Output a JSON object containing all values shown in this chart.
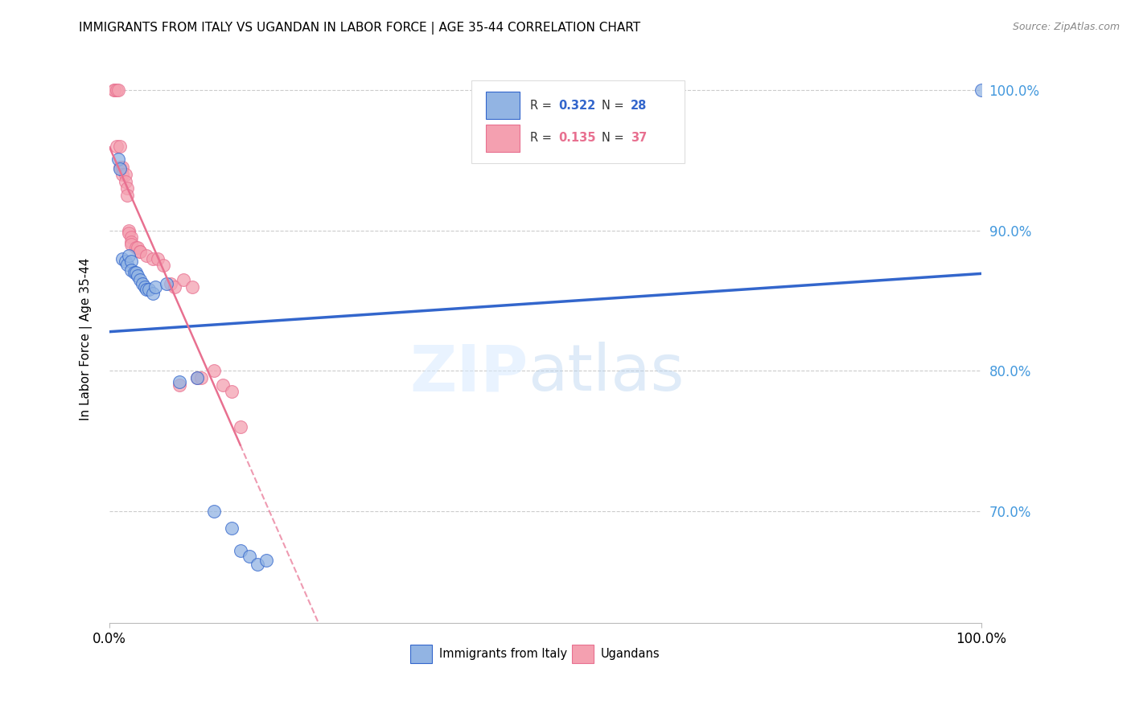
{
  "title": "IMMIGRANTS FROM ITALY VS UGANDAN IN LABOR FORCE | AGE 35-44 CORRELATION CHART",
  "source": "Source: ZipAtlas.com",
  "ylabel": "In Labor Force | Age 35-44",
  "legend_italy_R": "0.322",
  "legend_italy_N": "28",
  "legend_ugandan_R": "0.135",
  "legend_ugandan_N": "37",
  "italy_color": "#92B4E3",
  "ugandan_color": "#F4A0B0",
  "italy_line_color": "#3366CC",
  "ugandan_line_color": "#E87090",
  "watermark_zip": "ZIP",
  "watermark_atlas": "atlas",
  "italy_x": [
    1.0,
    1.2,
    1.5,
    1.8,
    2.0,
    2.2,
    2.5,
    2.5,
    2.8,
    3.0,
    3.2,
    3.5,
    3.8,
    4.0,
    4.2,
    4.5,
    5.0,
    5.2,
    6.5,
    8.0,
    10.0,
    12.0,
    14.0,
    15.0,
    16.0,
    17.0,
    18.0,
    100.0
  ],
  "italy_y": [
    0.951,
    0.944,
    0.88,
    0.878,
    0.876,
    0.882,
    0.878,
    0.872,
    0.87,
    0.87,
    0.868,
    0.865,
    0.862,
    0.86,
    0.858,
    0.858,
    0.855,
    0.86,
    0.862,
    0.792,
    0.795,
    0.7,
    0.688,
    0.672,
    0.668,
    0.662,
    0.665,
    1.0
  ],
  "ugandan_x": [
    0.5,
    0.5,
    0.8,
    0.8,
    1.0,
    1.2,
    1.2,
    1.5,
    1.5,
    1.8,
    1.8,
    2.0,
    2.0,
    2.2,
    2.2,
    2.5,
    2.5,
    2.5,
    3.0,
    3.2,
    3.5,
    3.5,
    4.2,
    5.0,
    5.5,
    6.2,
    7.0,
    7.5,
    8.0,
    8.5,
    9.5,
    10.0,
    10.5,
    12.0,
    13.0,
    14.0,
    15.0
  ],
  "ugandan_y": [
    1.0,
    1.0,
    1.0,
    0.96,
    1.0,
    0.96,
    0.945,
    0.945,
    0.94,
    0.94,
    0.935,
    0.93,
    0.925,
    0.9,
    0.898,
    0.895,
    0.892,
    0.89,
    0.888,
    0.888,
    0.885,
    0.885,
    0.882,
    0.88,
    0.88,
    0.875,
    0.862,
    0.86,
    0.79,
    0.865,
    0.86,
    0.795,
    0.795,
    0.8,
    0.79,
    0.785,
    0.76
  ],
  "xlim": [
    0,
    100
  ],
  "ylim": [
    0.62,
    1.025
  ],
  "ytick_positions": [
    0.7,
    0.8,
    0.9,
    1.0
  ],
  "ytick_labels": [
    "70.0%",
    "80.0%",
    "90.0%",
    "100.0%"
  ],
  "xtick_positions": [
    0,
    20,
    40,
    60,
    80,
    100
  ],
  "xtick_labels": [
    "0.0%",
    "",
    "",
    "",
    "",
    "100.0%"
  ]
}
